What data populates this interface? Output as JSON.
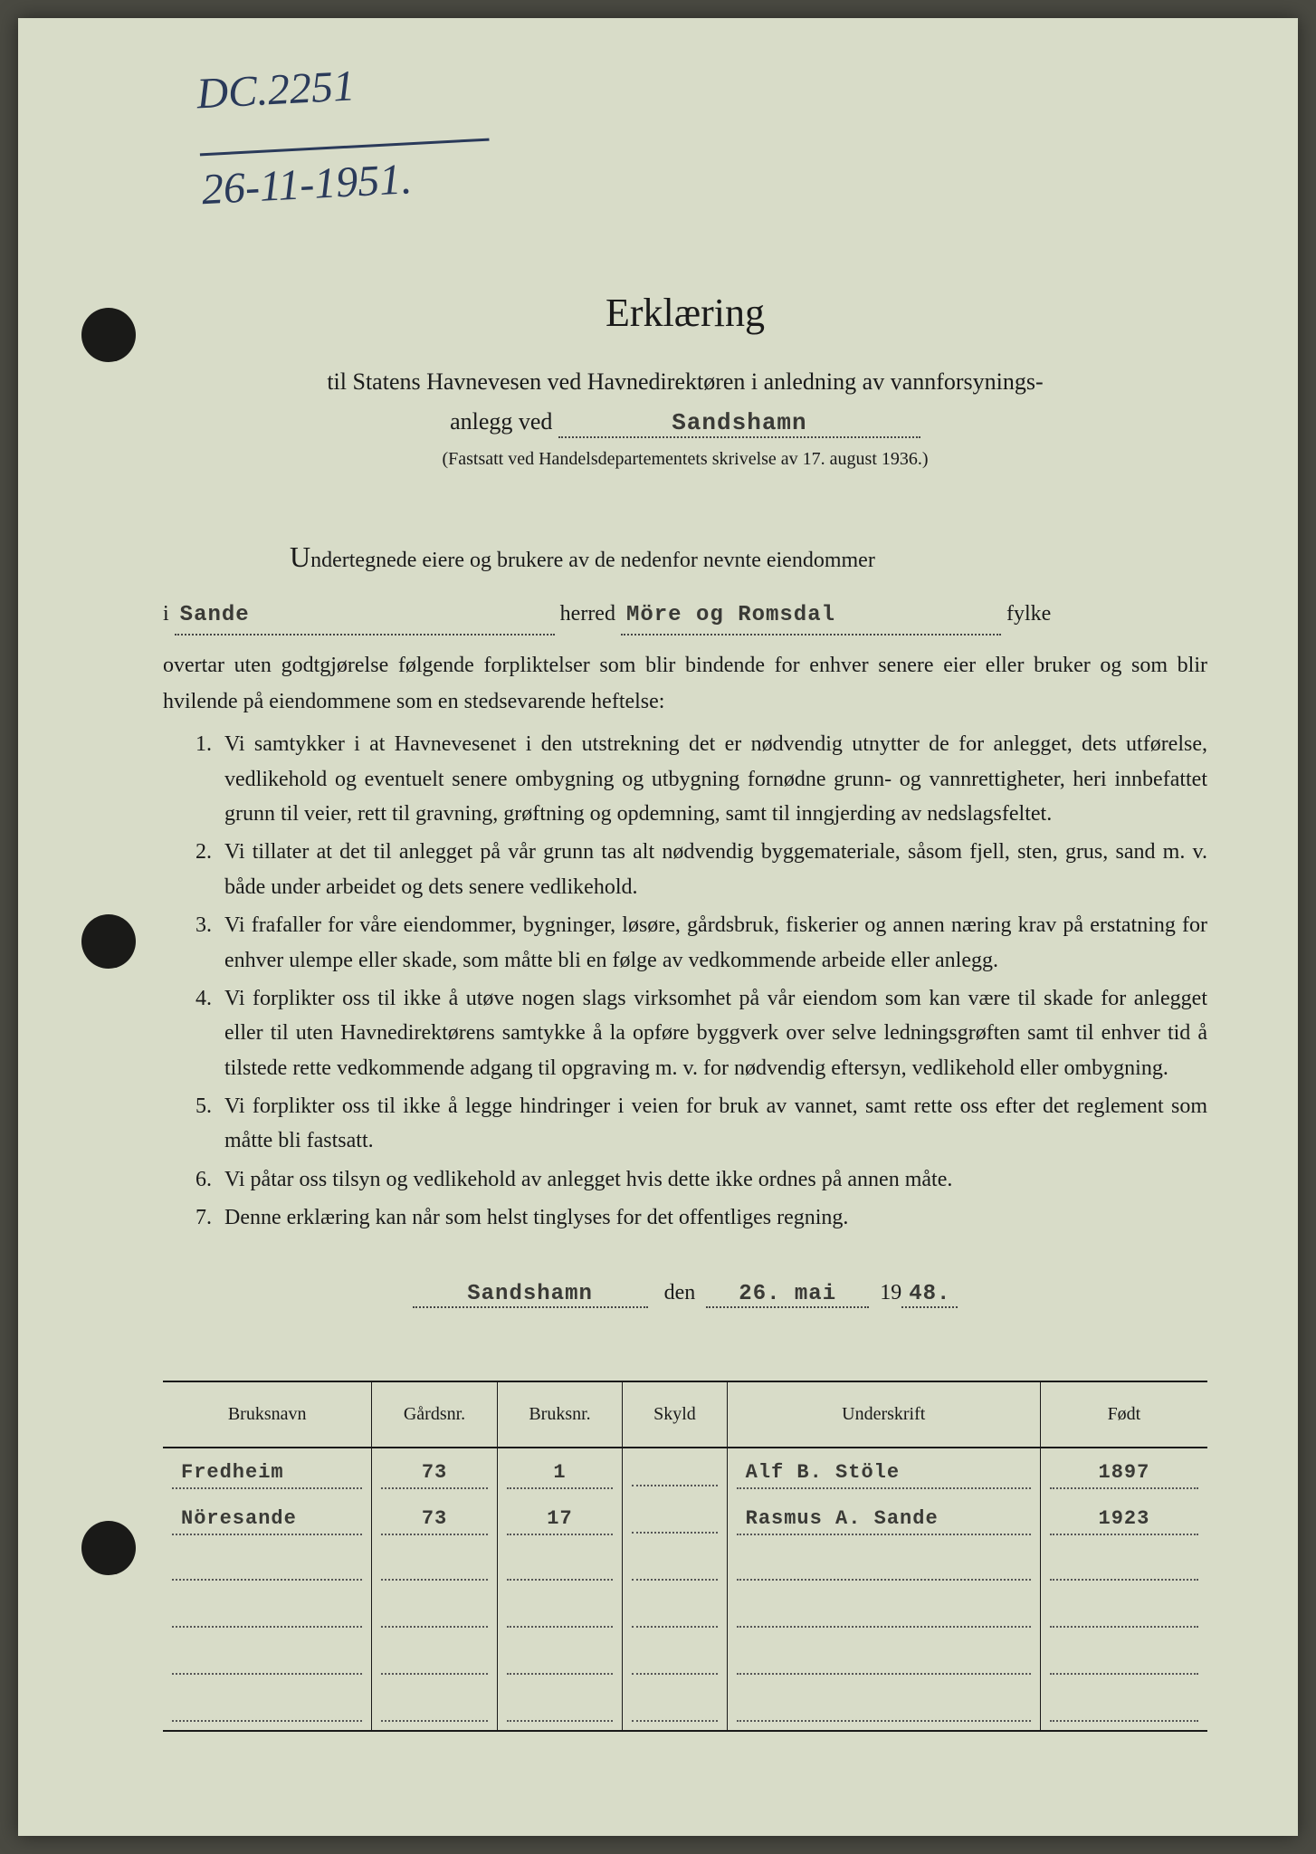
{
  "handwritten": {
    "line1": "DC.2251",
    "line2": "26-11-1951."
  },
  "title": "Erklæring",
  "subtitle_prefix": "til Statens Havnevesen ved Havnedirektøren i anledning av vannforsynings-",
  "subtitle_line2_prefix": "anlegg ved",
  "anlegg_ved": "Sandshamn",
  "regulation_note": "(Fastsatt ved Handelsdepartementets skrivelse av 17. august 1936.)",
  "intro_text": "ndertegnede eiere og brukere av de nedenfor nevnte eiendommer",
  "intro_dropcap": "U",
  "fill_i_label": "i",
  "fill_herred_label": "herred",
  "fill_fylke_label": "fylke",
  "herred_value": "Sande",
  "fylke_value": "Möre og Romsdal",
  "preamble": "overtar uten godtgjørelse følgende forpliktelser som blir bindende for enhver senere eier eller bruker og som blir hvilende på eiendommene som en stedsevarende heftelse:",
  "clauses": [
    "Vi samtykker i at Havnevesenet i den utstrekning det er nødvendig utnytter de for anlegget, dets utførelse, vedlikehold og eventuelt senere ombygning og utbygning fornødne grunn- og vannrettigheter, heri innbefattet grunn til veier, rett til gravning, grøftning og opdemning, samt til inngjerding av nedslagsfeltet.",
    "Vi tillater at det til anlegget på vår grunn tas alt nødvendig byggemateriale, såsom fjell, sten, grus, sand m. v. både under arbeidet og dets senere vedlikehold.",
    "Vi frafaller for våre eiendommer, bygninger, løsøre, gårdsbruk, fiskerier og annen næring krav på erstatning for enhver ulempe eller skade, som måtte bli en følge av vedkommende arbeide eller anlegg.",
    "Vi forplikter oss til ikke å utøve nogen slags virksomhet på vår eiendom som kan være til skade for anlegget eller til uten Havnedirektørens samtykke å la opføre byggverk over selve ledningsgrøften samt til enhver tid å tilstede rette vedkommende adgang til opgraving m. v. for nødvendig eftersyn, vedlikehold eller ombygning.",
    "Vi forplikter oss til ikke å legge hindringer i veien for bruk av vannet, samt rette oss efter det reglement som måtte bli fastsatt.",
    "Vi påtar oss tilsyn og vedlikehold av anlegget hvis dette ikke ordnes på annen måte.",
    "Denne erklæring kan når som helst tinglyses for det offentliges regning."
  ],
  "signature": {
    "place": "Sandshamn",
    "den_label": "den",
    "date": "26. mai",
    "year_prefix": "19",
    "year_suffix": "48."
  },
  "table": {
    "headers": {
      "bruksnavn": "Bruksnavn",
      "gardsnr": "Gårdsnr.",
      "bruksnr": "Bruksnr.",
      "skyld": "Skyld",
      "underskrift": "Underskrift",
      "fodt": "Født"
    },
    "rows": [
      {
        "bruksnavn": "Fredheim",
        "gardsnr": "73",
        "bruksnr": "1",
        "skyld": "",
        "underskrift": "Alf B. Stöle",
        "fodt": "1897"
      },
      {
        "bruksnavn": "Nöresande",
        "gardsnr": "73",
        "bruksnr": "17",
        "skyld": "",
        "underskrift": "Rasmus A. Sande",
        "fodt": "1923"
      },
      {
        "bruksnavn": "",
        "gardsnr": "",
        "bruksnr": "",
        "skyld": "",
        "underskrift": "",
        "fodt": ""
      },
      {
        "bruksnavn": "",
        "gardsnr": "",
        "bruksnr": "",
        "skyld": "",
        "underskrift": "",
        "fodt": ""
      },
      {
        "bruksnavn": "",
        "gardsnr": "",
        "bruksnr": "",
        "skyld": "",
        "underskrift": "",
        "fodt": ""
      },
      {
        "bruksnavn": "",
        "gardsnr": "",
        "bruksnr": "",
        "skyld": "",
        "underskrift": "",
        "fodt": ""
      }
    ]
  }
}
